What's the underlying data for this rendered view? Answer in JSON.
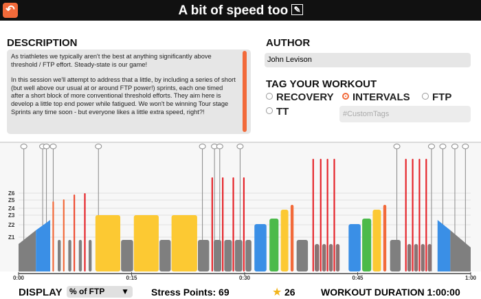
{
  "header": {
    "title": "A bit of speed too"
  },
  "description": {
    "title": "DESCRIPTION",
    "paragraphs": [
      "As triathletes we typically aren't the best at anything significantly above threshold / FTP effort. Steady-state is our game!",
      "In this session we'll attempt to address that a little, by including a series of short (but well above our usual at or around FTP power!) sprints, each one timed after a short block of more conventional threshold efforts. They aim here is develop a little top end power while fatigued. We won't be winning Tour stage Sprints any time soon - but everyone likes a little extra speed, right?!"
    ]
  },
  "author": {
    "title": "AUTHOR",
    "name": "John Levison"
  },
  "tags": {
    "title": "TAG YOUR WORKOUT",
    "options": [
      "RECOVERY",
      "INTERVALS",
      "FTP",
      "TT"
    ],
    "selected": 1,
    "custom_placeholder": "#CustomTags"
  },
  "workout": {
    "xlim": [
      0,
      60
    ],
    "ylim": [
      0,
      188
    ],
    "xticks": [
      {
        "value": 0,
        "label": "0:00"
      },
      {
        "value": 15,
        "label": "0:15"
      },
      {
        "value": 30,
        "label": "0:30"
      },
      {
        "value": 45,
        "label": "0:45"
      },
      {
        "value": 60,
        "label": "1:00"
      }
    ],
    "yticks": [
      {
        "value": 50,
        "label": "Z1"
      },
      {
        "value": 68,
        "label": "Z2"
      },
      {
        "value": 82,
        "label": "Z3"
      },
      {
        "value": 92,
        "label": "Z4"
      },
      {
        "value": 104,
        "label": "Z5"
      },
      {
        "value": 114,
        "label": "Z6"
      }
    ],
    "text_events": [
      0.7,
      3.2,
      3.7,
      4.6,
      10.6,
      24.4,
      26,
      26.7,
      29.4,
      50.2,
      54.8,
      56.3,
      57.9,
      59.3
    ],
    "blocks": [
      [
        0,
        2.3,
        40,
        60,
        "#7f7f7f"
      ],
      [
        2.3,
        4.2,
        60,
        75,
        "#3a8fe6"
      ],
      [
        4.5,
        4.7,
        102,
        102,
        "#f26a3a"
      ],
      [
        5.2,
        5.6,
        46,
        46,
        "#7f7f7f"
      ],
      [
        5.9,
        6.1,
        105,
        105,
        "#f26a3a"
      ],
      [
        6.6,
        7,
        46,
        46,
        "#7f7f7f"
      ],
      [
        7.3,
        7.5,
        112,
        112,
        "#ee4a30"
      ],
      [
        8,
        8.4,
        46,
        46,
        "#7f7f7f"
      ],
      [
        8.7,
        8.9,
        114,
        114,
        "#e5242a"
      ],
      [
        9.3,
        9.7,
        46,
        46,
        "#7f7f7f"
      ],
      [
        10.2,
        13.5,
        82,
        82,
        "#fcc933"
      ],
      [
        13.6,
        15.2,
        46,
        46,
        "#7f7f7f"
      ],
      [
        15.3,
        18.6,
        82,
        82,
        "#fcc933"
      ],
      [
        18.7,
        20.2,
        46,
        46,
        "#7f7f7f"
      ],
      [
        20.3,
        23.7,
        82,
        82,
        "#fcc933"
      ],
      [
        23.8,
        25.3,
        46,
        46,
        "#7f7f7f"
      ],
      [
        25.6,
        25.8,
        137,
        137,
        "#e5242a"
      ],
      [
        25.9,
        26.9,
        46,
        46,
        "#7f7f7f"
      ],
      [
        27,
        27.2,
        137,
        137,
        "#e5242a"
      ],
      [
        27.3,
        28.3,
        46,
        46,
        "#7f7f7f"
      ],
      [
        28.4,
        28.6,
        137,
        137,
        "#e5242a"
      ],
      [
        28.7,
        29.7,
        46,
        46,
        "#7f7f7f"
      ],
      [
        29.8,
        30,
        137,
        137,
        "#e5242a"
      ],
      [
        30.1,
        30.9,
        46,
        46,
        "#7f7f7f"
      ],
      [
        31.3,
        32.9,
        69,
        69,
        "#3a8fe6"
      ],
      [
        33.3,
        34.5,
        77,
        77,
        "#4cba4a"
      ],
      [
        34.8,
        35.8,
        90,
        90,
        "#fcc933"
      ],
      [
        36.1,
        36.5,
        97,
        97,
        "#f26a3a"
      ],
      [
        36.9,
        38.4,
        46,
        46,
        "#7f7f7f"
      ],
      [
        39,
        39.2,
        164,
        164,
        "#e5242a"
      ],
      [
        39.3,
        39.9,
        40,
        40,
        "#8a7373"
      ],
      [
        40,
        40.2,
        164,
        164,
        "#e5242a"
      ],
      [
        40.3,
        40.8,
        40,
        40,
        "#8a7373"
      ],
      [
        40.9,
        41.1,
        164,
        164,
        "#e5242a"
      ],
      [
        41.2,
        41.7,
        40,
        40,
        "#8a7373"
      ],
      [
        41.8,
        42,
        164,
        164,
        "#e5242a"
      ],
      [
        42.1,
        42.6,
        40,
        40,
        "#8a7373"
      ],
      [
        43.8,
        45.4,
        69,
        69,
        "#3a8fe6"
      ],
      [
        45.6,
        46.8,
        77,
        77,
        "#4cba4a"
      ],
      [
        47,
        48.1,
        90,
        90,
        "#fcc933"
      ],
      [
        48.4,
        48.8,
        97,
        97,
        "#f26a3a"
      ],
      [
        49.3,
        50.7,
        46,
        46,
        "#7f7f7f"
      ],
      [
        51.3,
        51.5,
        164,
        164,
        "#e5242a"
      ],
      [
        51.6,
        52.1,
        40,
        40,
        "#8a7373"
      ],
      [
        52.2,
        52.4,
        164,
        164,
        "#e5242a"
      ],
      [
        52.5,
        53,
        40,
        40,
        "#8a7373"
      ],
      [
        53.1,
        53.3,
        164,
        164,
        "#e5242a"
      ],
      [
        53.4,
        53.9,
        40,
        40,
        "#8a7373"
      ],
      [
        54,
        54.2,
        164,
        164,
        "#e5242a"
      ],
      [
        54.3,
        54.8,
        40,
        40,
        "#8a7373"
      ],
      [
        55.6,
        57.3,
        75,
        60,
        "#3a8fe6"
      ],
      [
        57.3,
        60,
        60,
        35,
        "#7f7f7f"
      ]
    ]
  },
  "footer": {
    "display_label": "DISPLAY",
    "display_value": "% of FTP",
    "stress": "Stress Points: 69",
    "stars": "26",
    "duration": "WORKOUT DURATION 1:00:00"
  }
}
